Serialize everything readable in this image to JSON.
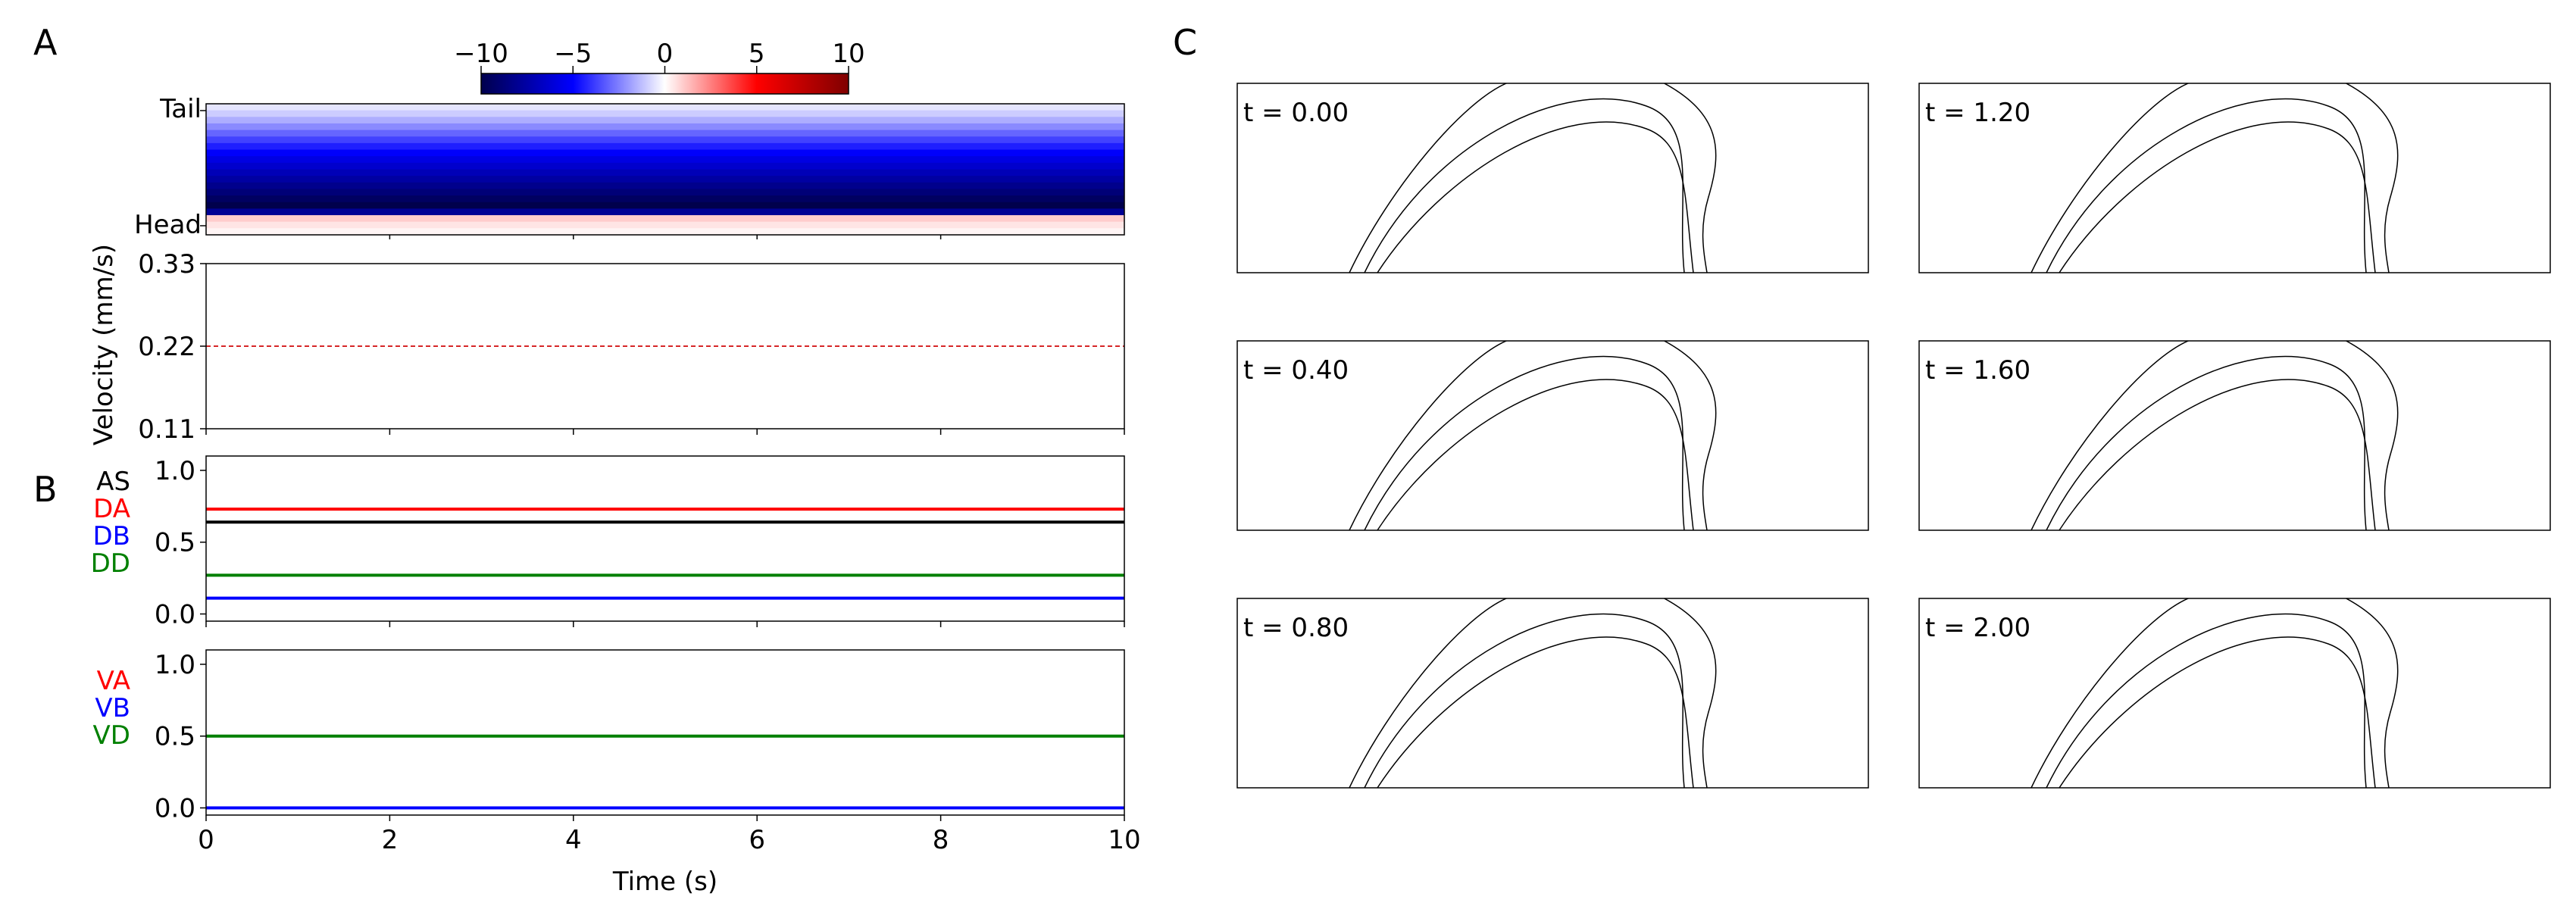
{
  "panel_labels": {
    "a": "A",
    "b": "B",
    "c": "C"
  },
  "chart_data": [
    {
      "id": "heatmap",
      "type": "heatmap",
      "title": "",
      "xlim": [
        0,
        10
      ],
      "ytick_labels": {
        "top": "Tail",
        "bottom": "Head"
      },
      "colorbar": {
        "range": [
          -10,
          10
        ],
        "ticks": [
          -10,
          -5,
          0,
          5,
          10
        ],
        "tick_labels": [
          "−10",
          "−5",
          "0",
          "5",
          "10"
        ],
        "colormap": "seismic"
      },
      "row_values_tail_to_head": [
        -0.5,
        -1.0,
        -1.6,
        -2.3,
        -3.0,
        -3.7,
        -4.4,
        -5.1,
        -5.8,
        -6.4,
        -7.0,
        -7.6,
        -8.2,
        -8.8,
        -9.4,
        -10.0,
        -8.0,
        1.0,
        0.5,
        0.2
      ]
    },
    {
      "id": "velocity",
      "type": "line",
      "ylabel": "Velocity (mm/s)",
      "xlim": [
        0,
        10
      ],
      "ylim": [
        0.11,
        0.33
      ],
      "yticks": [
        0.11,
        0.22,
        0.33
      ],
      "ytick_labels": [
        "0.11",
        "0.22",
        "0.33"
      ],
      "series": [
        {
          "name": "mean velocity",
          "color": "#d62728",
          "style": "dashed",
          "x": [
            0,
            10
          ],
          "y": [
            0.22,
            0.22
          ]
        }
      ]
    },
    {
      "id": "neurons-dorsal",
      "type": "line",
      "xlim": [
        0,
        10
      ],
      "ylim": [
        -0.05,
        1.1
      ],
      "yticks": [
        0.0,
        0.5,
        1.0
      ],
      "ytick_labels": [
        "0.0",
        "0.5",
        "1.0"
      ],
      "legend": [
        {
          "name": "AS",
          "color": "#000000"
        },
        {
          "name": "DA",
          "color": "#ff0000"
        },
        {
          "name": "DB",
          "color": "#0000ff"
        },
        {
          "name": "DD",
          "color": "#008000"
        }
      ],
      "series": [
        {
          "name": "DA",
          "color": "#ff0000",
          "x": [
            0,
            10
          ],
          "y": [
            0.73,
            0.73
          ]
        },
        {
          "name": "AS",
          "color": "#000000",
          "x": [
            0,
            10
          ],
          "y": [
            0.64,
            0.64
          ]
        },
        {
          "name": "DD",
          "color": "#008000",
          "x": [
            0,
            10
          ],
          "y": [
            0.27,
            0.27
          ]
        },
        {
          "name": "DB",
          "color": "#0000ff",
          "x": [
            0,
            10
          ],
          "y": [
            0.11,
            0.11
          ]
        }
      ]
    },
    {
      "id": "neurons-ventral",
      "type": "line",
      "xlabel": "Time (s)",
      "xlim": [
        0,
        10
      ],
      "ylim": [
        -0.05,
        1.1
      ],
      "xticks": [
        0,
        2,
        4,
        6,
        8,
        10
      ],
      "xtick_labels": [
        "0",
        "2",
        "4",
        "6",
        "8",
        "10"
      ],
      "yticks": [
        0.0,
        0.5,
        1.0
      ],
      "ytick_labels": [
        "0.0",
        "0.5",
        "1.0"
      ],
      "legend": [
        {
          "name": "VA",
          "color": "#ff0000"
        },
        {
          "name": "VB",
          "color": "#0000ff"
        },
        {
          "name": "VD",
          "color": "#008000"
        }
      ],
      "series": [
        {
          "name": "VD",
          "color": "#008000",
          "x": [
            0,
            10
          ],
          "y": [
            0.5,
            0.5
          ]
        },
        {
          "name": "VA",
          "color": "#ff0000",
          "x": [
            0,
            10
          ],
          "y": [
            0.0,
            0.0
          ]
        },
        {
          "name": "VB",
          "color": "#0000ff",
          "x": [
            0,
            10
          ],
          "y": [
            0.0,
            0.0
          ]
        }
      ]
    }
  ],
  "snapshots": [
    {
      "label": "t = 0.00"
    },
    {
      "label": "t = 0.40"
    },
    {
      "label": "t = 0.80"
    },
    {
      "label": "t = 1.20"
    },
    {
      "label": "t = 1.60"
    },
    {
      "label": "t = 2.00"
    }
  ]
}
